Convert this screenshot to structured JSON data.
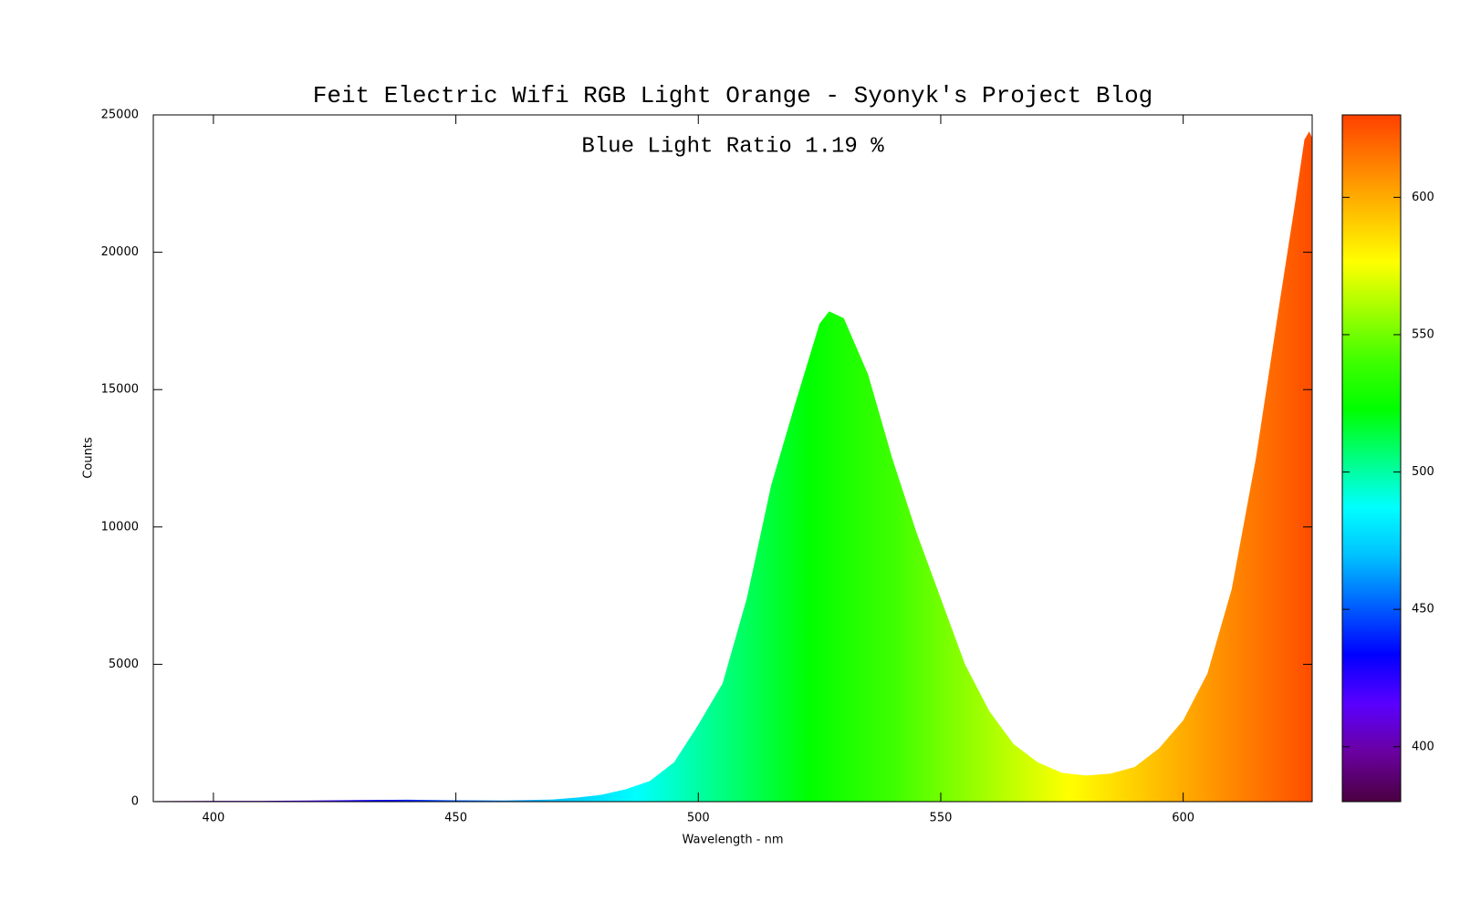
{
  "chart_data": {
    "type": "area",
    "title": "Feit Electric Wifi RGB Light Orange - Syonyk's Project Blog",
    "annotation": "Blue Light Ratio 1.19 %",
    "xlabel": "Wavelength - nm",
    "ylabel": "Counts",
    "x": [
      388,
      400,
      410,
      420,
      430,
      440,
      450,
      460,
      465,
      470,
      475,
      480,
      485,
      490,
      495,
      500,
      505,
      510,
      515,
      520,
      525,
      527,
      530,
      535,
      540,
      545,
      550,
      555,
      560,
      565,
      570,
      575,
      580,
      585,
      590,
      595,
      600,
      605,
      610,
      615,
      620,
      623,
      625,
      626,
      626.5
    ],
    "values": [
      20,
      30,
      30,
      40,
      60,
      70,
      50,
      40,
      60,
      80,
      150,
      250,
      450,
      750,
      1430,
      2800,
      4300,
      7400,
      11500,
      14500,
      17400,
      17850,
      17600,
      15560,
      12500,
      9800,
      7400,
      5000,
      3300,
      2100,
      1430,
      1050,
      950,
      1020,
      1260,
      1940,
      2960,
      4670,
      7730,
      12500,
      18300,
      21700,
      24100,
      24400,
      24200
    ],
    "xlim": [
      387.6,
      626.6
    ],
    "ylim": [
      0,
      25000
    ],
    "xticks": [
      400,
      450,
      500,
      550,
      600
    ],
    "yticks": [
      0,
      5000,
      10000,
      15000,
      20000,
      25000
    ],
    "colorbar": {
      "lim": [
        380,
        630
      ],
      "ticks": [
        400,
        450,
        500,
        550,
        600
      ],
      "colors": [
        "#4a0040",
        "#6a00a0",
        "#5a00ff",
        "#0000ff",
        "#0060ff",
        "#00c0ff",
        "#00ffff",
        "#00ff80",
        "#00ff00",
        "#40ff00",
        "#a0ff00",
        "#ffff00",
        "#ffc000",
        "#ff8000",
        "#ff4000"
      ]
    }
  }
}
